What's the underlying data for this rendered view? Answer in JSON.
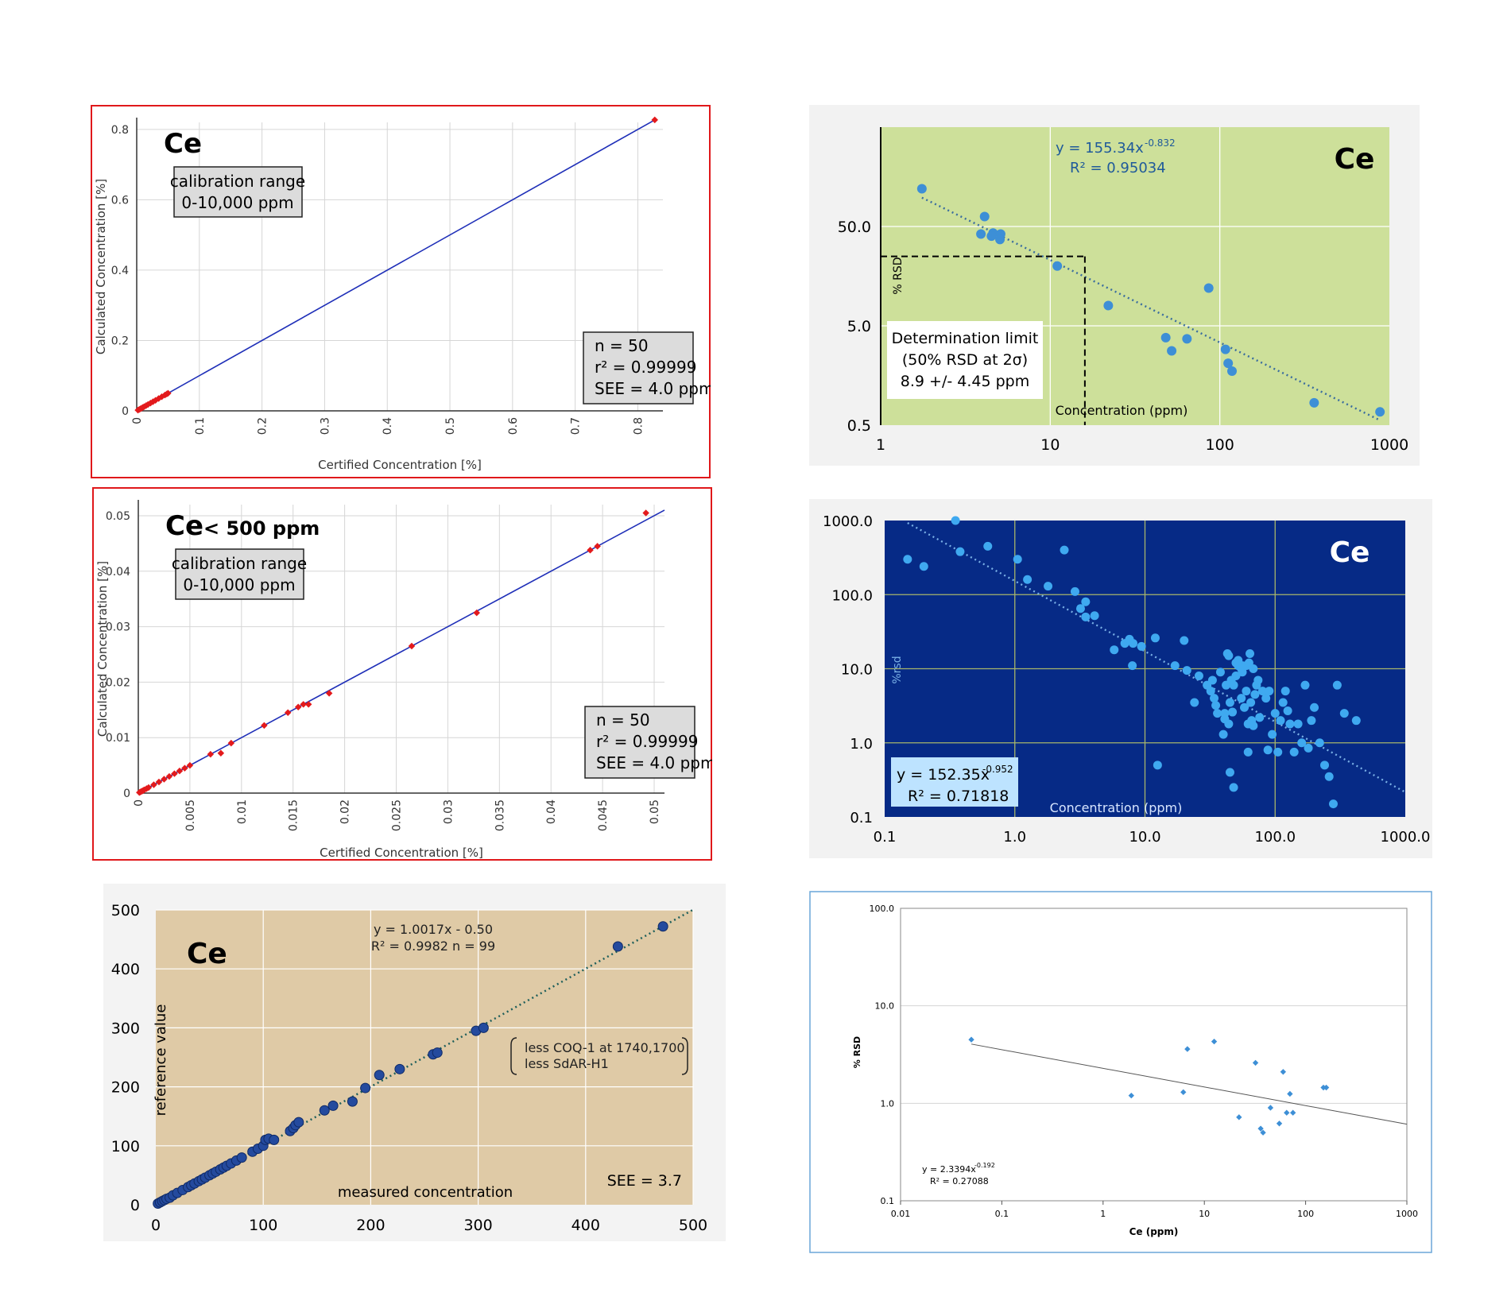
{
  "chart_data": [
    {
      "id": "p1",
      "type": "scatter",
      "label": "Ce",
      "label_suffix": "",
      "xlabel": "Certified Concentration [%]",
      "ylabel": "Calculated Concentration [%]",
      "xlim": [
        0,
        0.84
      ],
      "ylim": [
        0,
        0.82
      ],
      "xticks": [
        "0",
        "0.1",
        "0.2",
        "0.3",
        "0.4",
        "0.5",
        "0.6",
        "0.7",
        "0.8"
      ],
      "yticks": [
        "0",
        "0.2",
        "0.4",
        "0.6",
        "0.8"
      ],
      "x": [
        0.002,
        0.004,
        0.006,
        0.008,
        0.01,
        0.012,
        0.015,
        0.018,
        0.022,
        0.026,
        0.03,
        0.035,
        0.04,
        0.045,
        0.048,
        0.05,
        0.827
      ],
      "y": [
        0.002,
        0.004,
        0.006,
        0.008,
        0.01,
        0.012,
        0.015,
        0.018,
        0.022,
        0.026,
        0.03,
        0.035,
        0.04,
        0.045,
        0.048,
        0.05,
        0.827
      ],
      "fit": {
        "x0": 0,
        "y0": 0,
        "x1": 0.827,
        "y1": 0.827
      },
      "box1": [
        "calibration range",
        "0-10,000 ppm"
      ],
      "box2": [
        "n = 50",
        "r² = 0.99999",
        "SEE = 4.0 ppm"
      ]
    },
    {
      "id": "p2",
      "type": "scatter",
      "label": "Ce",
      "label_suffix": "< 500 ppm",
      "xlabel": "Certified Concentration [%]",
      "ylabel": "Calculated Concentration [%]",
      "xlim": [
        0,
        0.051
      ],
      "ylim": [
        0,
        0.052
      ],
      "xticks": [
        "0",
        "0.005",
        "0.01",
        "0.015",
        "0.02",
        "0.025",
        "0.03",
        "0.035",
        "0.04",
        "0.045",
        "0.05"
      ],
      "yticks": [
        "0",
        "0.01",
        "0.02",
        "0.03",
        "0.04",
        "0.05"
      ],
      "x": [
        0.0001,
        0.0002,
        0.0003,
        0.0004,
        0.0005,
        0.0006,
        0.0008,
        0.001,
        0.0015,
        0.002,
        0.0025,
        0.003,
        0.0035,
        0.004,
        0.0045,
        0.005,
        0.007,
        0.008,
        0.009,
        0.0122,
        0.0145,
        0.0155,
        0.016,
        0.0165,
        0.0185,
        0.0265,
        0.0328,
        0.0438,
        0.0445,
        0.0492
      ],
      "y": [
        0.0001,
        0.0002,
        0.0003,
        0.0004,
        0.0005,
        0.0006,
        0.0008,
        0.001,
        0.0015,
        0.002,
        0.0025,
        0.003,
        0.0035,
        0.004,
        0.0045,
        0.005,
        0.007,
        0.0072,
        0.009,
        0.0122,
        0.0145,
        0.0155,
        0.016,
        0.016,
        0.018,
        0.0265,
        0.0325,
        0.0438,
        0.0445,
        0.0505
      ],
      "fit": {
        "x0": 0,
        "y0": 0,
        "x1": 0.051,
        "y1": 0.051
      },
      "box1": [
        "calibration range",
        "0-10,000 ppm"
      ],
      "box2": [
        "n = 50",
        "r² = 0.99999",
        "SEE = 4.0 ppm"
      ]
    },
    {
      "id": "p3",
      "type": "scatter",
      "label": "Ce",
      "xlabel": "measured concentration",
      "ylabel": "reference value",
      "xlim": [
        0,
        500
      ],
      "ylim": [
        0,
        500
      ],
      "xticks": [
        "0",
        "100",
        "200",
        "300",
        "400",
        "500"
      ],
      "yticks": [
        "0",
        "100",
        "200",
        "300",
        "400",
        "500"
      ],
      "x": [
        2,
        4,
        6,
        8,
        10,
        13,
        16,
        20,
        25,
        30,
        33,
        36,
        40,
        43,
        46,
        50,
        53,
        56,
        60,
        63,
        66,
        70,
        75,
        80,
        90,
        95,
        100,
        102,
        105,
        110,
        125,
        128,
        130,
        133,
        157,
        165,
        183,
        195,
        208,
        227,
        258,
        262,
        298,
        305,
        430,
        472
      ],
      "y": [
        2,
        4,
        6,
        8,
        10,
        12,
        16,
        20,
        25,
        30,
        33,
        36,
        40,
        43,
        46,
        50,
        53,
        56,
        60,
        63,
        66,
        70,
        75,
        80,
        90,
        95,
        100,
        110,
        112,
        110,
        125,
        130,
        135,
        140,
        160,
        168,
        175,
        198,
        220,
        230,
        255,
        258,
        295,
        300,
        438,
        472
      ],
      "fit": {
        "x0": 0,
        "y0": 0,
        "x1": 500,
        "y1": 500.35
      },
      "equation": "y = 1.0017x - 0.50",
      "r2": "R² = 0.9982   n = 99",
      "note": [
        "less COQ-1 at 1740,1700",
        "less SdAR-H1"
      ],
      "see": "SEE = 3.7"
    },
    {
      "id": "p4",
      "type": "scatter",
      "scale": "log-log",
      "label": "Ce",
      "xlabel": "Concentration (ppm)",
      "ylabel": "% RSD",
      "xlim": [
        1,
        1000
      ],
      "ylim": [
        0.5,
        500
      ],
      "xticks": [
        "1",
        "10",
        "100",
        "1000"
      ],
      "yticks": [
        "0.5",
        "5.0",
        "50.0"
      ],
      "x": [
        1.75,
        4.1,
        4.6,
        3.9,
        4.5,
        5.1,
        5.05,
        11,
        22,
        48,
        52,
        64,
        86,
        108,
        112,
        118,
        360,
        880
      ],
      "y": [
        120,
        63,
        43,
        42,
        40,
        42,
        37,
        20,
        8,
        3.8,
        2.8,
        3.7,
        12,
        2.9,
        2.1,
        1.75,
        0.84,
        0.68
      ],
      "fit": {
        "x0": 1.75,
        "y0": 97.6,
        "x1": 880,
        "y1": 0.56
      },
      "equation": "y = 155.34x",
      "exponent": "-0.832",
      "r2": "R² = 0.95034",
      "dl_box": [
        "Determination limit",
        "(50% RSD at 2σ)",
        "8.9 +/- 4.45 ppm"
      ],
      "dl_x": 16,
      "dl_y": 25
    },
    {
      "id": "p5",
      "type": "scatter",
      "scale": "log-log",
      "label": "Ce",
      "xlabel": "Concentration (ppm)",
      "ylabel": "%rsd",
      "xlim": [
        0.1,
        1000
      ],
      "ylim": [
        0.1,
        1000
      ],
      "xticks": [
        "0.1",
        "1.0",
        "10.0",
        "100.0",
        "1000.0"
      ],
      "yticks": [
        "0.1",
        "1.0",
        "10.0",
        "100.0",
        "1000.0"
      ],
      "x": [
        0.15,
        0.2,
        0.35,
        0.38,
        0.62,
        1.05,
        1.25,
        2.4,
        1.8,
        2.9,
        3.5,
        3.2,
        4.1,
        3.5,
        5.8,
        7.0,
        7.6,
        8.1,
        8.0,
        9.4,
        12.0,
        12.5,
        17,
        20,
        21,
        24,
        26,
        30,
        32,
        33,
        34,
        35,
        36,
        38,
        40,
        41,
        42,
        43,
        44,
        45,
        46,
        47,
        48,
        50,
        52,
        55,
        56,
        58,
        60,
        62,
        64,
        65,
        66,
        68,
        70,
        72,
        74,
        76,
        80,
        85,
        88,
        90,
        95,
        100,
        105,
        110,
        115,
        120,
        125,
        130,
        140,
        150,
        160,
        170,
        180,
        190,
        200,
        220,
        240,
        260,
        280,
        300,
        340,
        420,
        41,
        44,
        62,
        50,
        56,
        55,
        60,
        63,
        68,
        52,
        45,
        48
      ],
      "y": [
        300,
        240,
        1000,
        380,
        450,
        300,
        160,
        400,
        130,
        110,
        80,
        65,
        52,
        50,
        18,
        22,
        25,
        22,
        11,
        20,
        26,
        0.5,
        11,
        24,
        9.5,
        3.5,
        8,
        6,
        5,
        7,
        4,
        3.2,
        2.5,
        9,
        1.3,
        2.5,
        6,
        16,
        15,
        3.5,
        7,
        2.6,
        6,
        8,
        11,
        4,
        9,
        3,
        5,
        0.75,
        16,
        3.5,
        2,
        1.7,
        4.5,
        6,
        7,
        2.2,
        5,
        4,
        0.8,
        5,
        1.3,
        2.5,
        0.75,
        2,
        3.5,
        5,
        2.7,
        1.8,
        0.75,
        1.8,
        1,
        6,
        0.85,
        2,
        3,
        1,
        0.5,
        0.35,
        0.15,
        6,
        2.5,
        2,
        2.1,
        1.8,
        1.8,
        12,
        11,
        10,
        11,
        12,
        10,
        13,
        0.4,
        0.25
      ],
      "fit": {
        "x0": 0.15,
        "y0": 927.8,
        "x1": 1000,
        "y1": 0.216
      },
      "equation": "y = 152.35x",
      "exponent": "-0.952",
      "r2": "R² = 0.71818"
    },
    {
      "id": "p6",
      "type": "scatter",
      "scale": "log-log",
      "xlabel": "Ce (ppm)",
      "ylabel": "% RSD",
      "xlim": [
        0.01,
        1000
      ],
      "ylim": [
        0.1,
        100
      ],
      "xticks": [
        "0.01",
        "0.1",
        "1",
        "10",
        "100",
        "1000"
      ],
      "yticks": [
        "0.1",
        "1.0",
        "10.0",
        "100.0"
      ],
      "x": [
        0.05,
        1.9,
        6.2,
        6.8,
        12.5,
        22,
        32,
        36,
        38,
        45,
        55,
        60,
        65,
        70,
        75,
        150,
        160
      ],
      "y": [
        4.5,
        1.2,
        1.3,
        3.6,
        4.3,
        0.72,
        2.6,
        0.55,
        0.5,
        0.9,
        0.62,
        2.1,
        0.8,
        1.25,
        0.8,
        1.45,
        1.45
      ],
      "fit": {
        "x0": 0.05,
        "y0": 4.05,
        "x1": 1000,
        "y1": 0.61
      },
      "equation": "y = 2.3394x",
      "exponent": "-0.192",
      "r2": "R² = 0.27088"
    }
  ]
}
